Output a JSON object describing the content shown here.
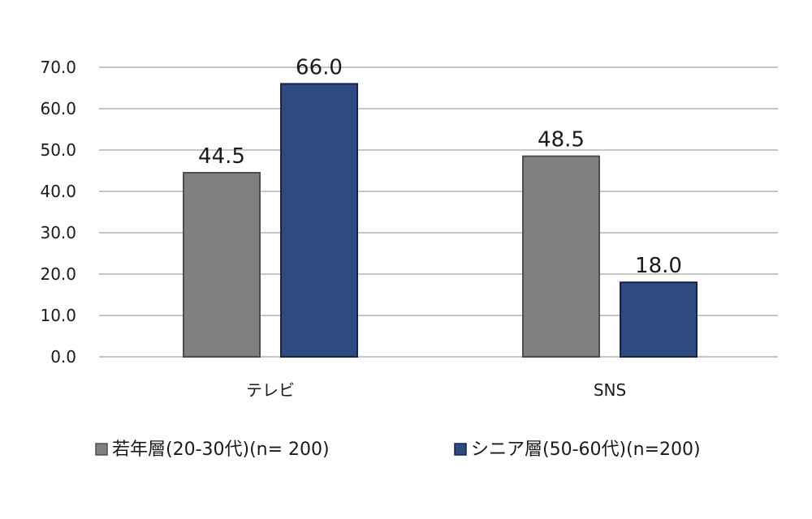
{
  "chart_data": {
    "type": "bar",
    "categories": [
      "テレビ",
      "SNS"
    ],
    "series": [
      {
        "name": "若年層(20-30代)(n= 200)",
        "values": [
          44.5,
          48.5
        ],
        "color": "#808080",
        "stroke": "#4d4d4d"
      },
      {
        "name": "シニア層(50-60代)(n=200)",
        "values": [
          66.0,
          18.0
        ],
        "color": "#2e4a80",
        "stroke": "#14244a"
      }
    ],
    "yticks": [
      "0.0",
      "10.0",
      "20.0",
      "30.0",
      "40.0",
      "50.0",
      "60.0",
      "70.0"
    ],
    "data_labels": [
      [
        "44.5",
        "48.5"
      ],
      [
        "66.0",
        "18.0"
      ]
    ],
    "ylim": [
      0,
      70
    ],
    "grid": true,
    "legend_position": "bottom",
    "gridline_color": "#b3b3b3"
  }
}
